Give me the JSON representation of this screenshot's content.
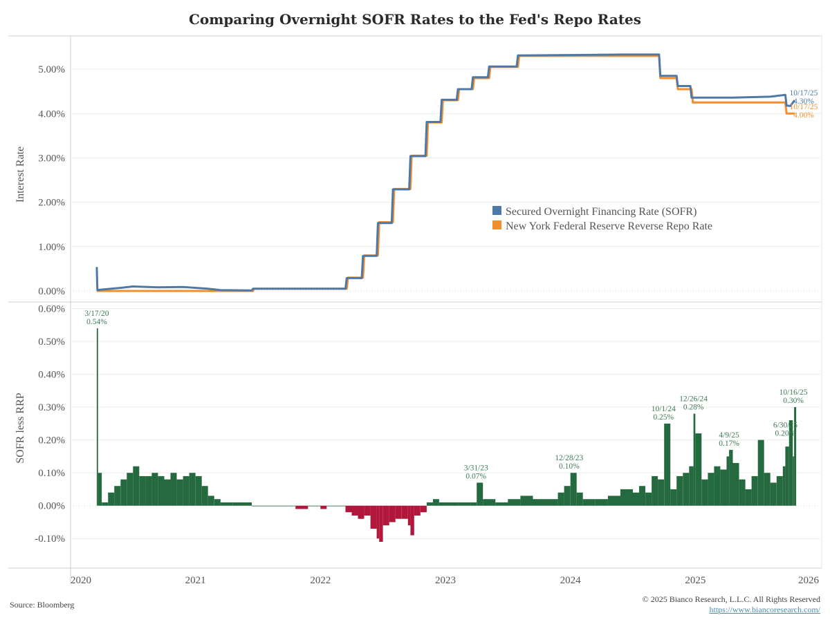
{
  "title": "Comparing Overnight SOFR Rates to the Fed's Repo Rates",
  "footer": {
    "source": "Source: Bloomberg",
    "copyright": "© 2025 Bianco Research, L.L.C. All Rights Reserved",
    "link": "https://www.biancoresearch.com/"
  },
  "colors": {
    "sofr": "#4e79a7",
    "rrp": "#f28e2b",
    "positive": "#246a3e",
    "negative": "#b0173a",
    "annotation_green": "#3d7a55",
    "grid": "#ececec"
  },
  "chart_data": [
    {
      "type": "line",
      "title": "Comparing Overnight SOFR Rates to the Fed's Repo Rates",
      "xlabel": "",
      "ylabel": "Interest Rate",
      "x_range": [
        2020.0,
        2026.0
      ],
      "x_ticks": [
        "2020",
        "2021",
        "2022",
        "2023",
        "2024",
        "2025",
        "2026"
      ],
      "ylim": [
        -0.25,
        5.75
      ],
      "y_ticks": [
        "0.00%",
        "1.00%",
        "2.00%",
        "3.00%",
        "4.00%",
        "5.00%"
      ],
      "legend": {
        "placement": "center-right",
        "entries": [
          "Secured Overnight Financing Rate (SOFR)",
          "New York Federal Reserve Reverse Repo Rate"
        ]
      },
      "series": [
        {
          "name": "Secured Overnight Financing Rate (SOFR)",
          "x": [
            2020.21,
            2020.215,
            2020.25,
            2020.4,
            2020.5,
            2020.7,
            2020.9,
            2021.1,
            2021.2,
            2021.45,
            2021.46,
            2022.0,
            2022.2,
            2022.21,
            2022.33,
            2022.34,
            2022.45,
            2022.46,
            2022.57,
            2022.58,
            2022.71,
            2022.72,
            2022.84,
            2022.85,
            2022.96,
            2022.97,
            2023.09,
            2023.1,
            2023.21,
            2023.22,
            2023.34,
            2023.35,
            2023.57,
            2023.58,
            2024.0,
            2024.4,
            2024.71,
            2024.72,
            2024.85,
            2024.86,
            2024.96,
            2024.97,
            2025.3,
            2025.6,
            2025.72,
            2025.73,
            2025.76,
            2025.795
          ],
          "values": [
            0.54,
            0.02,
            0.03,
            0.07,
            0.1,
            0.08,
            0.09,
            0.05,
            0.02,
            0.01,
            0.05,
            0.05,
            0.05,
            0.29,
            0.29,
            0.79,
            0.79,
            1.53,
            1.53,
            2.29,
            2.29,
            3.04,
            3.04,
            3.81,
            3.81,
            4.31,
            4.31,
            4.55,
            4.55,
            4.82,
            4.82,
            5.06,
            5.06,
            5.31,
            5.32,
            5.33,
            5.33,
            4.85,
            4.85,
            4.62,
            4.62,
            4.36,
            4.36,
            4.38,
            4.42,
            4.18,
            4.17,
            4.3
          ]
        },
        {
          "name": "New York Federal Reserve Reverse Repo Rate",
          "x": [
            2020.21,
            2021.46,
            2021.47,
            2022.21,
            2022.22,
            2022.34,
            2022.35,
            2022.46,
            2022.47,
            2022.58,
            2022.59,
            2022.72,
            2022.73,
            2022.85,
            2022.86,
            2022.97,
            2022.98,
            2023.1,
            2023.11,
            2023.22,
            2023.23,
            2023.35,
            2023.36,
            2023.58,
            2023.59,
            2024.71,
            2024.72,
            2024.85,
            2024.86,
            2024.97,
            2024.98,
            2025.72,
            2025.73,
            2025.795
          ],
          "values": [
            0.0,
            0.0,
            0.05,
            0.05,
            0.3,
            0.3,
            0.8,
            0.8,
            1.55,
            1.55,
            2.3,
            2.3,
            3.05,
            3.05,
            3.8,
            3.8,
            4.3,
            4.3,
            4.55,
            4.55,
            4.8,
            4.8,
            5.05,
            5.05,
            5.3,
            5.3,
            4.8,
            4.8,
            4.55,
            4.55,
            4.25,
            4.25,
            4.0,
            4.0
          ]
        }
      ],
      "end_labels": [
        {
          "series": "Secured Overnight Financing Rate (SOFR)",
          "date": "10/17/25",
          "value": "4.30%"
        },
        {
          "series": "New York Federal Reserve Reverse Repo Rate",
          "date": "10/17/25",
          "value": "4.00%"
        }
      ]
    },
    {
      "type": "bar",
      "ylabel": "SOFR less RRP",
      "x_range": [
        2020.0,
        2026.0
      ],
      "x_ticks": [
        "2020",
        "2021",
        "2022",
        "2023",
        "2024",
        "2025",
        "2026"
      ],
      "ylim": [
        -0.19,
        0.62
      ],
      "y_ticks": [
        "-0.10%",
        "0.00%",
        "0.10%",
        "0.20%",
        "0.30%",
        "0.40%",
        "0.50%",
        "0.60%"
      ],
      "x": [
        2020.21,
        2020.22,
        2020.25,
        2020.3,
        2020.35,
        2020.4,
        2020.45,
        2020.5,
        2020.55,
        2020.6,
        2020.65,
        2020.7,
        2020.75,
        2020.8,
        2020.85,
        2020.9,
        2020.95,
        2021.0,
        2021.05,
        2021.1,
        2021.15,
        2021.2,
        2021.3,
        2021.45,
        2021.6,
        2021.8,
        2021.9,
        2022.0,
        2022.05,
        2022.1,
        2022.2,
        2022.25,
        2022.3,
        2022.35,
        2022.4,
        2022.45,
        2022.47,
        2022.5,
        2022.55,
        2022.6,
        2022.65,
        2022.7,
        2022.72,
        2022.75,
        2022.8,
        2022.85,
        2022.9,
        2022.95,
        2023.0,
        2023.1,
        2023.2,
        2023.25,
        2023.3,
        2023.4,
        2023.5,
        2023.6,
        2023.7,
        2023.8,
        2023.9,
        2023.95,
        2024.0,
        2024.05,
        2024.1,
        2024.2,
        2024.3,
        2024.4,
        2024.5,
        2024.55,
        2024.6,
        2024.65,
        2024.7,
        2024.75,
        2024.8,
        2024.85,
        2024.9,
        2024.95,
        2024.985,
        2025.0,
        2025.05,
        2025.1,
        2025.15,
        2025.2,
        2025.25,
        2025.27,
        2025.3,
        2025.35,
        2025.4,
        2025.45,
        2025.5,
        2025.55,
        2025.6,
        2025.65,
        2025.7,
        2025.72,
        2025.75,
        2025.78,
        2025.79
      ],
      "values": [
        0.54,
        0.1,
        0.01,
        0.04,
        0.06,
        0.08,
        0.1,
        0.12,
        0.09,
        0.09,
        0.1,
        0.09,
        0.08,
        0.1,
        0.08,
        0.09,
        0.1,
        0.09,
        0.06,
        0.03,
        0.02,
        0.01,
        0.01,
        0.0,
        0.0,
        -0.01,
        0.0,
        -0.01,
        0.0,
        0.0,
        -0.02,
        -0.03,
        -0.04,
        -0.03,
        -0.07,
        -0.1,
        -0.11,
        -0.06,
        -0.05,
        -0.04,
        -0.04,
        -0.06,
        -0.09,
        -0.03,
        -0.02,
        0.01,
        0.02,
        0.01,
        0.01,
        0.01,
        0.01,
        0.07,
        0.02,
        0.01,
        0.02,
        0.03,
        0.02,
        0.02,
        0.04,
        0.06,
        0.1,
        0.04,
        0.02,
        0.02,
        0.03,
        0.05,
        0.04,
        0.06,
        0.04,
        0.09,
        0.08,
        0.25,
        0.05,
        0.09,
        0.1,
        0.12,
        0.28,
        0.22,
        0.08,
        0.1,
        0.12,
        0.11,
        0.15,
        0.17,
        0.13,
        0.08,
        0.05,
        0.09,
        0.2,
        0.1,
        0.07,
        0.09,
        0.12,
        0.18,
        0.26,
        0.15,
        0.3
      ],
      "annotations": [
        {
          "date": "3/17/20",
          "value": "0.54%"
        },
        {
          "date": "3/31/23",
          "value": "0.07%"
        },
        {
          "date": "12/28/23",
          "value": "0.10%"
        },
        {
          "date": "10/1/24",
          "value": "0.25%"
        },
        {
          "date": "12/26/24",
          "value": "0.28%"
        },
        {
          "date": "4/9/25",
          "value": "0.17%"
        },
        {
          "date": "6/30/25",
          "value": "0.20%"
        },
        {
          "date": "10/16/25",
          "value": "0.30%"
        }
      ]
    }
  ]
}
